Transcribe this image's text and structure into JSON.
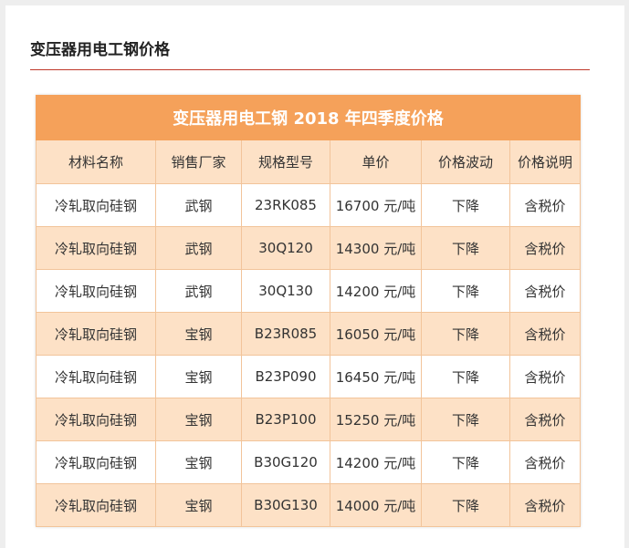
{
  "article": {
    "heading": "变压器用电工钢价格"
  },
  "table": {
    "title": "变压器用电工钢 2018 年四季度价格",
    "columns": [
      "材料名称",
      "销售厂家",
      "规格型号",
      "单价",
      "价格波动",
      "价格说明"
    ],
    "rows": [
      [
        "冷轧取向硅钢",
        "武钢",
        "23RK085",
        "16700 元/吨",
        "下降",
        "含税价"
      ],
      [
        "冷轧取向硅钢",
        "武钢",
        "30Q120",
        "14300 元/吨",
        "下降",
        "含税价"
      ],
      [
        "冷轧取向硅钢",
        "武钢",
        "30Q130",
        "14200 元/吨",
        "下降",
        "含税价"
      ],
      [
        "冷轧取向硅钢",
        "宝钢",
        "B23R085",
        "16050 元/吨",
        "下降",
        "含税价"
      ],
      [
        "冷轧取向硅钢",
        "宝钢",
        "B23P090",
        "16450 元/吨",
        "下降",
        "含税价"
      ],
      [
        "冷轧取向硅钢",
        "宝钢",
        "B23P100",
        "15250 元/吨",
        "下降",
        "含税价"
      ],
      [
        "冷轧取向硅钢",
        "宝钢",
        "B30G120",
        "14200 元/吨",
        "下降",
        "含税价"
      ],
      [
        "冷轧取向硅钢",
        "宝钢",
        "B30G130",
        "14000 元/吨",
        "下降",
        "含税价"
      ]
    ]
  },
  "colors": {
    "title_bar": "#f5a15a",
    "header_fill": "#fde1c6",
    "rule": "#c0392b"
  }
}
